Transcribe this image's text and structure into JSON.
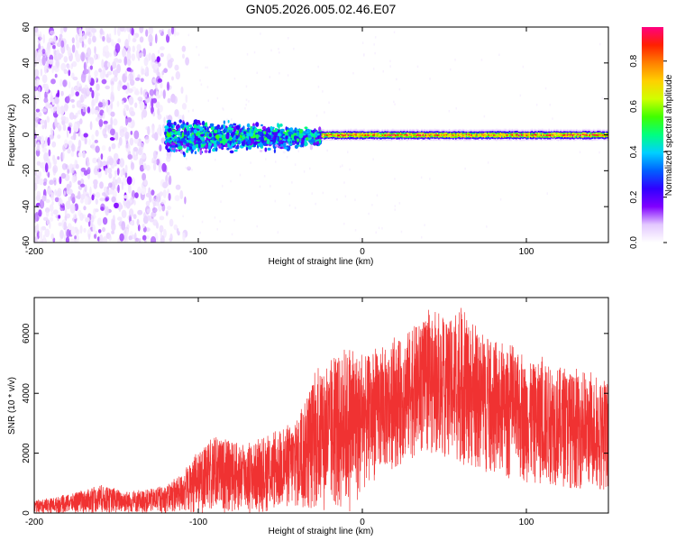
{
  "title": "GN05.2026.005.02.46.E07",
  "chart_data": [
    {
      "type": "heatmap",
      "title": "GN05.2026.005.02.46.E07",
      "xlabel": "Height of straight line (km)",
      "ylabel": "Frequency (Hz)",
      "xlim": [
        -200,
        150
      ],
      "ylim": [
        -60,
        60
      ],
      "x_ticks": [
        -200,
        -100,
        0,
        100
      ],
      "y_ticks": [
        -60,
        -40,
        -20,
        0,
        20,
        40,
        60
      ],
      "x_tick_labels": [
        "-200",
        "-100",
        "0",
        "100"
      ],
      "y_tick_labels": [
        "-60",
        "-40",
        "-20",
        "0",
        "20",
        "40",
        "60"
      ],
      "colorbar": {
        "label": "Normalized spectral amplitude",
        "range": [
          0.0,
          0.95
        ],
        "ticks": [
          0.0,
          0.2,
          0.4,
          0.6,
          0.8
        ],
        "tick_labels": [
          "0.0",
          "0.2",
          "0.4",
          "0.6",
          "0.8"
        ],
        "colormap": [
          "#ffffff",
          "#e3c8ff",
          "#8000ff",
          "#3000ff",
          "#0060ff",
          "#00d0ff",
          "#00ff80",
          "#40ff00",
          "#d0ff00",
          "#ffd000",
          "#ff8000",
          "#ff2000",
          "#ff0080"
        ]
      },
      "segments": [
        {
          "x_range": [
            -200,
            -108
          ],
          "pattern": "scattered noise",
          "freq_range": [
            -60,
            60
          ],
          "level": 0.1
        },
        {
          "x_range": [
            -120,
            -25
          ],
          "pattern": "broadened band",
          "freq_range": [
            -15,
            12
          ],
          "level": 0.3
        },
        {
          "x_range": [
            -25,
            150
          ],
          "pattern": "narrow line",
          "center_freq": 0,
          "half_width": 3,
          "peak": 0.9
        }
      ]
    },
    {
      "type": "line",
      "xlabel": "Height of straight line (km)",
      "ylabel": "SNR (10 * v/v)",
      "xlim": [
        -200,
        150
      ],
      "ylim": [
        0,
        7200
      ],
      "x_ticks": [
        -200,
        -100,
        0,
        100
      ],
      "y_ticks": [
        0,
        2000,
        4000,
        6000
      ],
      "x_tick_labels": [
        "-200",
        "-100",
        "0",
        "100"
      ],
      "y_tick_labels": [
        "0",
        "2000",
        "4000",
        "6000"
      ],
      "color": "#f03232",
      "envelope": {
        "x": [
          -200,
          -180,
          -160,
          -140,
          -120,
          -110,
          -100,
          -90,
          -80,
          -70,
          -60,
          -50,
          -40,
          -35,
          -30,
          -25,
          -20,
          -15,
          -10,
          -5,
          0,
          10,
          20,
          30,
          40,
          50,
          60,
          70,
          80,
          90,
          100,
          110,
          120,
          130,
          140,
          150
        ],
        "upper": [
          400,
          600,
          900,
          700,
          900,
          1300,
          2000,
          2500,
          2400,
          2300,
          2400,
          2700,
          3100,
          3700,
          4500,
          4700,
          4800,
          5200,
          5400,
          5500,
          5200,
          5400,
          5600,
          6200,
          6500,
          6300,
          6700,
          6000,
          5500,
          5400,
          5000,
          5000,
          4900,
          4600,
          4500,
          4300
        ],
        "lower": [
          0,
          0,
          0,
          0,
          0,
          0,
          0,
          0,
          0,
          0,
          0,
          100,
          100,
          0,
          0,
          0,
          0,
          0,
          0,
          0,
          700,
          1200,
          1500,
          1800,
          2000,
          1800,
          1600,
          1400,
          1200,
          1100,
          1000,
          900,
          900,
          800,
          800,
          700
        ]
      }
    }
  ]
}
